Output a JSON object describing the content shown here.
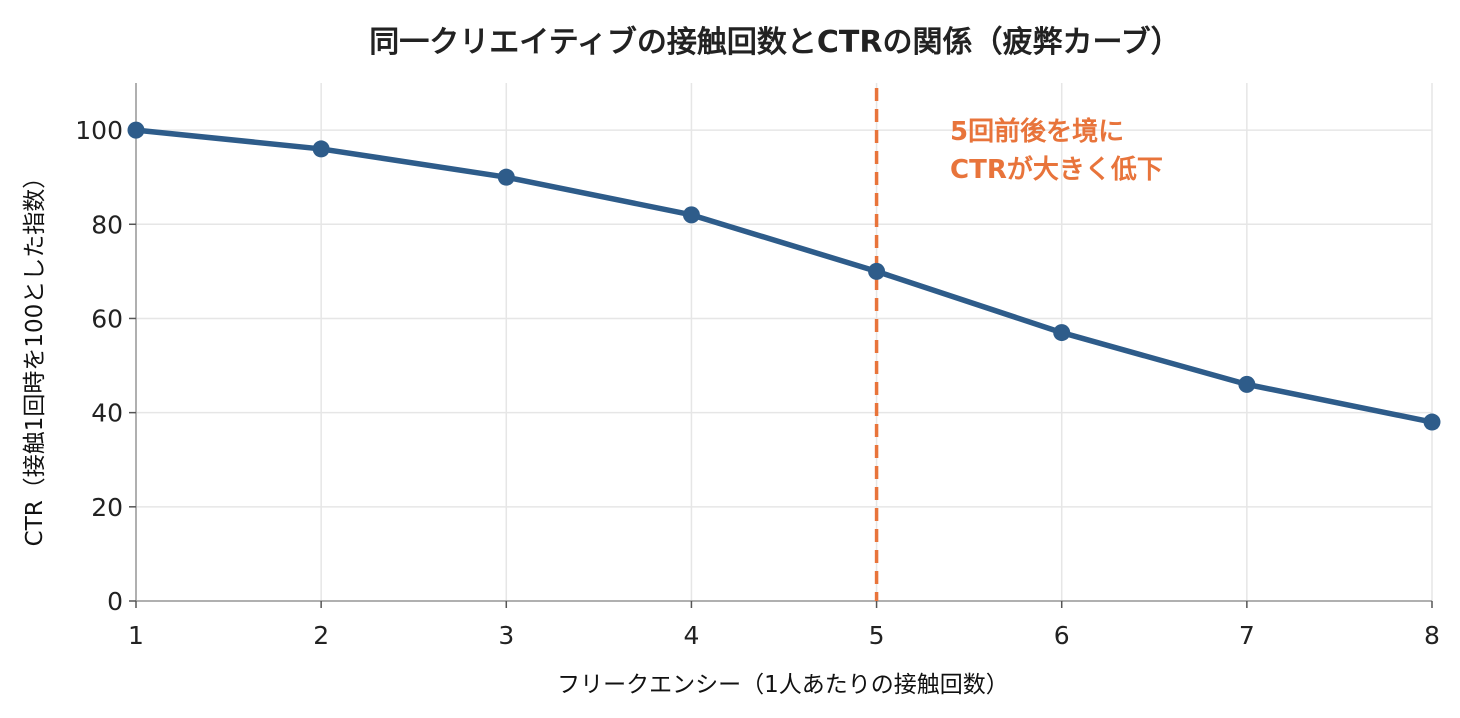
{
  "chart_data": {
    "type": "line",
    "title": "同一クリエイティブの接触回数とCTRの関係（疲弊カーブ）",
    "xlabel": "フリークエンシー（1人あたりの接触回数）",
    "ylabel": "CTR（接触1回時を100とした指数）",
    "x": [
      1,
      2,
      3,
      4,
      5,
      6,
      7,
      8
    ],
    "series": [
      {
        "values": [
          100,
          96,
          90,
          82,
          70,
          57,
          46,
          38
        ]
      }
    ],
    "xlim": [
      1,
      8
    ],
    "ylim": [
      0,
      110
    ],
    "xticks": [
      1,
      2,
      3,
      4,
      5,
      6,
      7,
      8
    ],
    "yticks": [
      0,
      20,
      40,
      60,
      80,
      100
    ],
    "grid": true,
    "reference_line": {
      "x": 5,
      "style": "dashed"
    },
    "annotation": {
      "lines": [
        "5回前後を境に",
        "CTRが大きく低下"
      ]
    },
    "colors": {
      "line": "#2e5c8a",
      "reference": "#e8743b",
      "annotation": "#e8743b",
      "grid": "#e6e6e6",
      "axis": "#999999"
    }
  }
}
